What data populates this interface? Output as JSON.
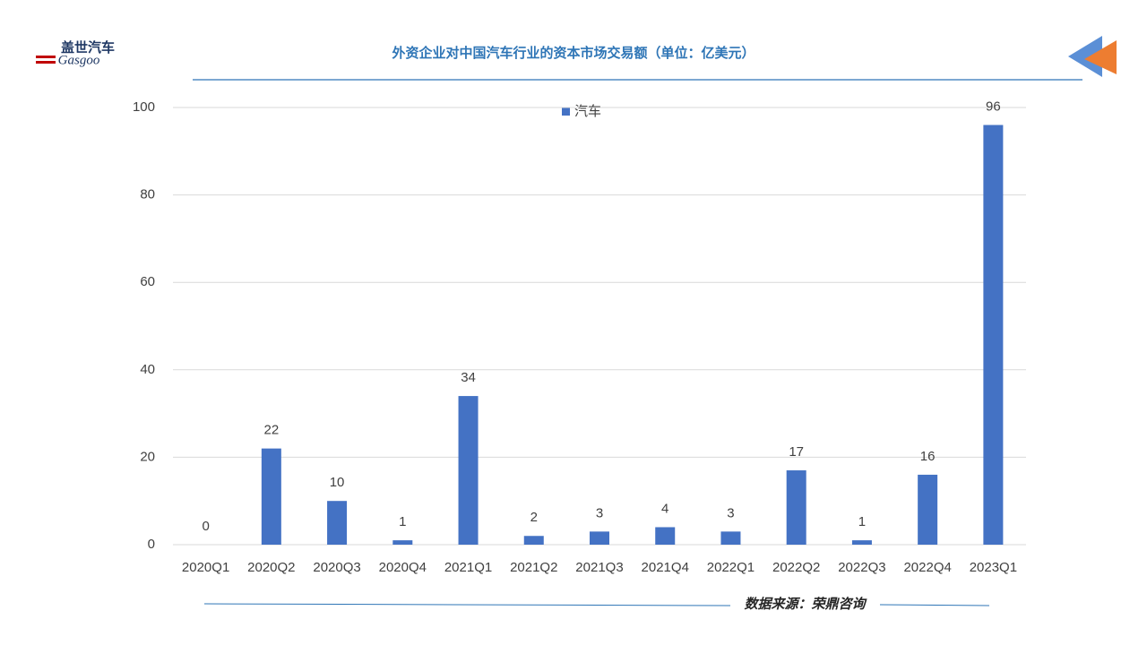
{
  "chart_data": {
    "type": "bar",
    "title": "外资企业对中国汽车行业的资本市场交易额（单位：亿美元）",
    "categories": [
      "2020Q1",
      "2020Q2",
      "2020Q3",
      "2020Q4",
      "2021Q1",
      "2021Q2",
      "2021Q3",
      "2021Q4",
      "2022Q1",
      "2022Q2",
      "2022Q3",
      "2022Q4",
      "2023Q1"
    ],
    "series": [
      {
        "name": "汽车",
        "color": "#4472c4",
        "values": [
          0,
          22,
          10,
          1,
          34,
          2,
          3,
          4,
          3,
          17,
          1,
          16,
          96
        ]
      }
    ],
    "ylim": [
      0,
      100
    ],
    "yticks": [
      0,
      20,
      40,
      60,
      80,
      100
    ],
    "grid": true,
    "source": "数据来源：荣鼎咨询",
    "logo": {
      "cn": "盖世汽车",
      "en": "Gasgoo"
    }
  }
}
